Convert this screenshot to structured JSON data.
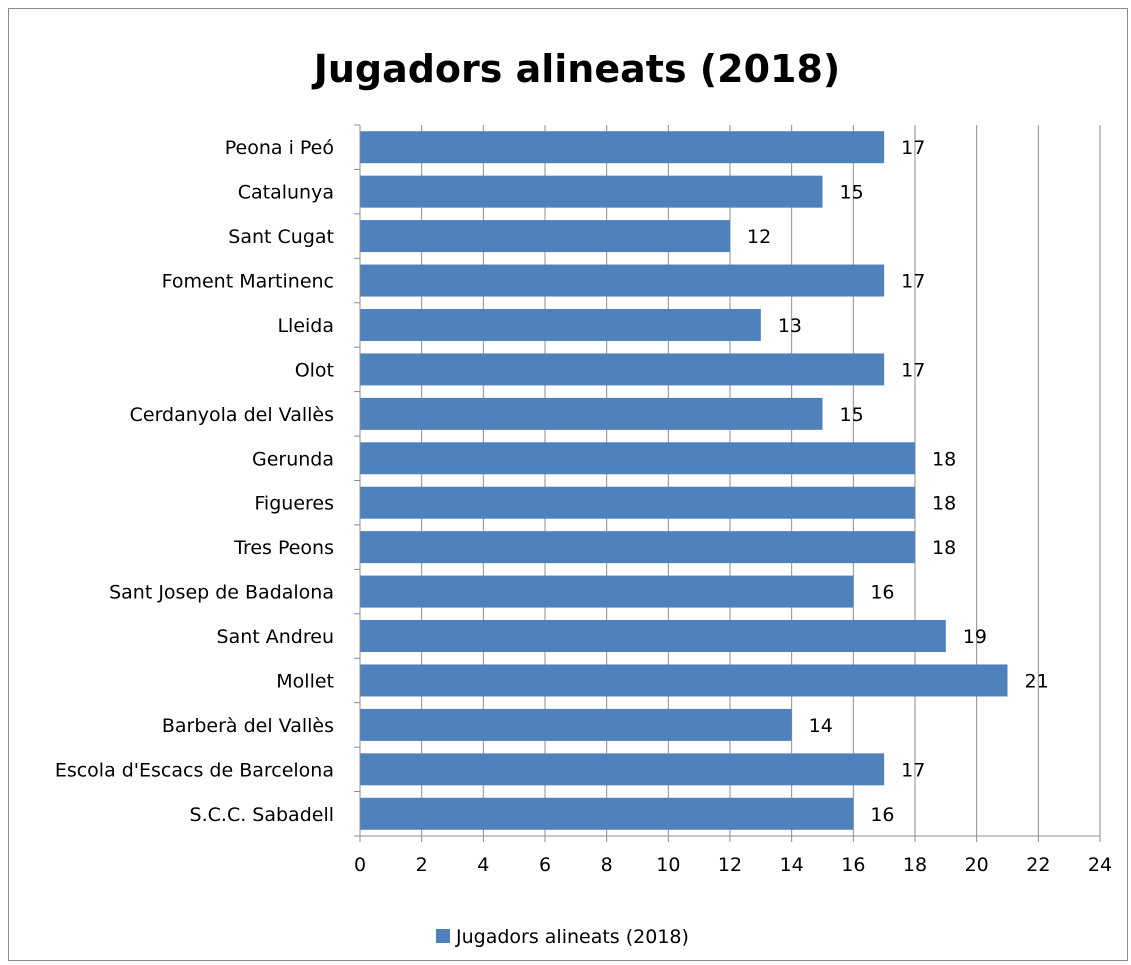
{
  "chart_data": {
    "type": "bar",
    "orientation": "horizontal",
    "title": "Jugadors  alineats (2018)",
    "xlabel": "",
    "ylabel": "",
    "categories": [
      "Peona i Peó",
      "Catalunya",
      "Sant Cugat",
      "Foment Martinenc",
      "Lleida",
      "Olot",
      "Cerdanyola del Vallès",
      "Gerunda",
      "Figueres",
      "Tres Peons",
      "Sant Josep de Badalona",
      "Sant Andreu",
      "Mollet",
      "Barberà del Vallès",
      "Escola d'Escacs de Barcelona",
      "S.C.C. Sabadell"
    ],
    "series": [
      {
        "name": "Jugadors  alineats (2018)",
        "values": [
          17,
          15,
          12,
          17,
          13,
          17,
          15,
          18,
          18,
          18,
          16,
          19,
          21,
          14,
          17,
          16
        ],
        "color": "#4f81bd"
      }
    ],
    "xlim": [
      0,
      24
    ],
    "xticks": [
      0,
      2,
      4,
      6,
      8,
      10,
      12,
      14,
      16,
      18,
      20,
      22,
      24
    ],
    "grid": true,
    "data_labels": true,
    "legend_position": "bottom"
  }
}
